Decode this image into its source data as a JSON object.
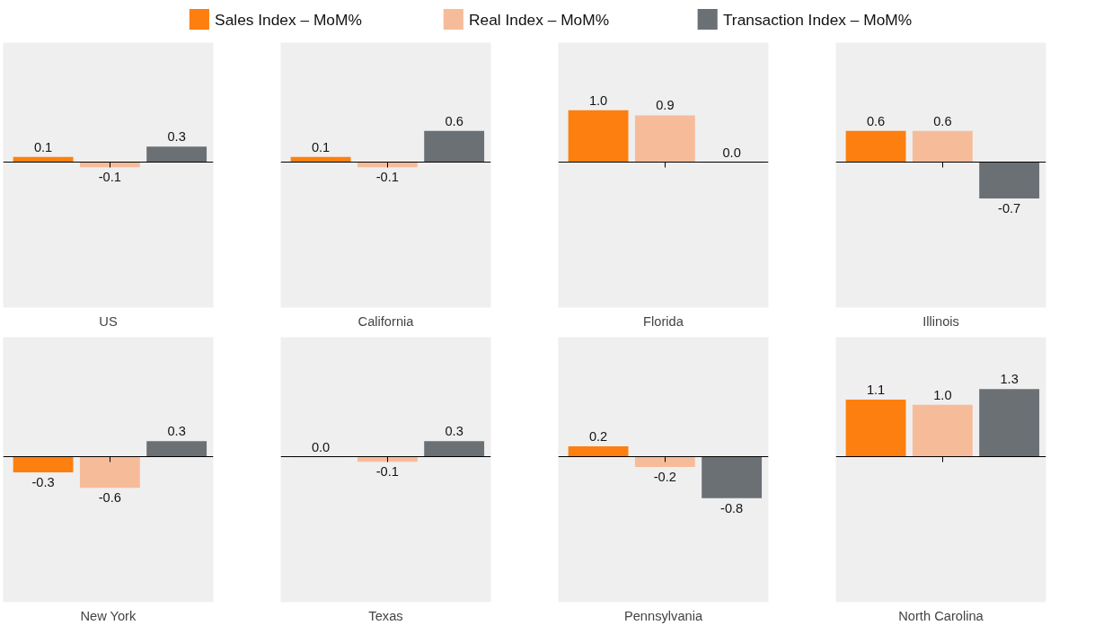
{
  "chart_data": [
    {
      "type": "bar",
      "xlabel": "US",
      "categories": [
        null
      ],
      "ylim": [
        -2.8,
        2.3
      ],
      "tick_labels": false,
      "grid": false,
      "legend": "top",
      "series": [
        {
          "name": "Sales Index – MoM%",
          "color": "#fd7f0f",
          "values": [
            0.1
          ],
          "value_labels": [
            "0.1"
          ]
        },
        {
          "name": "Real Index – MoM%",
          "color": "#f6bc9a",
          "values": [
            -0.1
          ],
          "value_labels": [
            "-0.1"
          ]
        },
        {
          "name": "Transaction Index – MoM%",
          "color": "#6b7075",
          "values": [
            0.3
          ],
          "value_labels": [
            "0.3"
          ]
        }
      ]
    },
    {
      "type": "bar",
      "xlabel": "California",
      "categories": [
        null
      ],
      "ylim": [
        -2.8,
        2.3
      ],
      "tick_labels": false,
      "grid": false,
      "series": [
        {
          "color": "#fd7f0f",
          "values": [
            0.1
          ],
          "value_labels": [
            "0.1"
          ]
        },
        {
          "color": "#f6bc9a",
          "values": [
            -0.1
          ],
          "value_labels": [
            "-0.1"
          ]
        },
        {
          "color": "#6b7075",
          "values": [
            0.6
          ],
          "value_labels": [
            "0.6"
          ]
        }
      ]
    },
    {
      "type": "bar",
      "xlabel": "Florida",
      "categories": [
        null
      ],
      "ylim": [
        -2.8,
        2.3
      ],
      "tick_labels": false,
      "grid": false,
      "series": [
        {
          "color": "#fd7f0f",
          "values": [
            1.0
          ],
          "value_labels": [
            "1.0"
          ]
        },
        {
          "color": "#f6bc9a",
          "values": [
            0.9
          ],
          "value_labels": [
            "0.9"
          ]
        },
        {
          "color": "#6b7075",
          "values": [
            0.0
          ],
          "value_labels": [
            "0.0"
          ]
        }
      ]
    },
    {
      "type": "bar",
      "xlabel": "Illinois",
      "categories": [
        null
      ],
      "ylim": [
        -2.8,
        2.3
      ],
      "tick_labels": false,
      "grid": false,
      "series": [
        {
          "color": "#fd7f0f",
          "values": [
            0.6
          ],
          "value_labels": [
            "0.6"
          ]
        },
        {
          "color": "#f6bc9a",
          "values": [
            0.6
          ],
          "value_labels": [
            "0.6"
          ]
        },
        {
          "color": "#6b7075",
          "values": [
            -0.7
          ],
          "value_labels": [
            "-0.7"
          ]
        }
      ]
    },
    {
      "type": "bar",
      "xlabel": "New York",
      "categories": [
        null
      ],
      "ylim": [
        -2.8,
        2.3
      ],
      "tick_labels": false,
      "grid": false,
      "series": [
        {
          "color": "#fd7f0f",
          "values": [
            -0.3
          ],
          "value_labels": [
            "-0.3"
          ]
        },
        {
          "color": "#f6bc9a",
          "values": [
            -0.6
          ],
          "value_labels": [
            "-0.6"
          ]
        },
        {
          "color": "#6b7075",
          "values": [
            0.3
          ],
          "value_labels": [
            "0.3"
          ]
        }
      ]
    },
    {
      "type": "bar",
      "xlabel": "Texas",
      "categories": [
        null
      ],
      "ylim": [
        -2.8,
        2.3
      ],
      "tick_labels": false,
      "grid": false,
      "series": [
        {
          "color": "#fd7f0f",
          "values": [
            0.0
          ],
          "value_labels": [
            "0.0"
          ]
        },
        {
          "color": "#f6bc9a",
          "values": [
            -0.1
          ],
          "value_labels": [
            "-0.1"
          ]
        },
        {
          "color": "#6b7075",
          "values": [
            0.3
          ],
          "value_labels": [
            "0.3"
          ]
        }
      ]
    },
    {
      "type": "bar",
      "xlabel": "Pennsylvania",
      "categories": [
        null
      ],
      "ylim": [
        -2.8,
        2.3
      ],
      "tick_labels": false,
      "grid": false,
      "series": [
        {
          "color": "#fd7f0f",
          "values": [
            0.2
          ],
          "value_labels": [
            "0.2"
          ]
        },
        {
          "color": "#f6bc9a",
          "values": [
            -0.2
          ],
          "value_labels": [
            "-0.2"
          ]
        },
        {
          "color": "#6b7075",
          "values": [
            -0.8
          ],
          "value_labels": [
            "-0.8"
          ]
        }
      ]
    },
    {
      "type": "bar",
      "xlabel": "North Carolina",
      "categories": [
        null
      ],
      "ylim": [
        -2.8,
        2.3
      ],
      "tick_labels": false,
      "grid": false,
      "series": [
        {
          "color": "#fd7f0f",
          "values": [
            1.1
          ],
          "value_labels": [
            "1.1"
          ]
        },
        {
          "color": "#f6bc9a",
          "values": [
            1.0
          ],
          "value_labels": [
            "1.0"
          ]
        },
        {
          "color": "#6b7075",
          "values": [
            1.3
          ],
          "value_labels": [
            "1.3"
          ]
        }
      ]
    }
  ]
}
